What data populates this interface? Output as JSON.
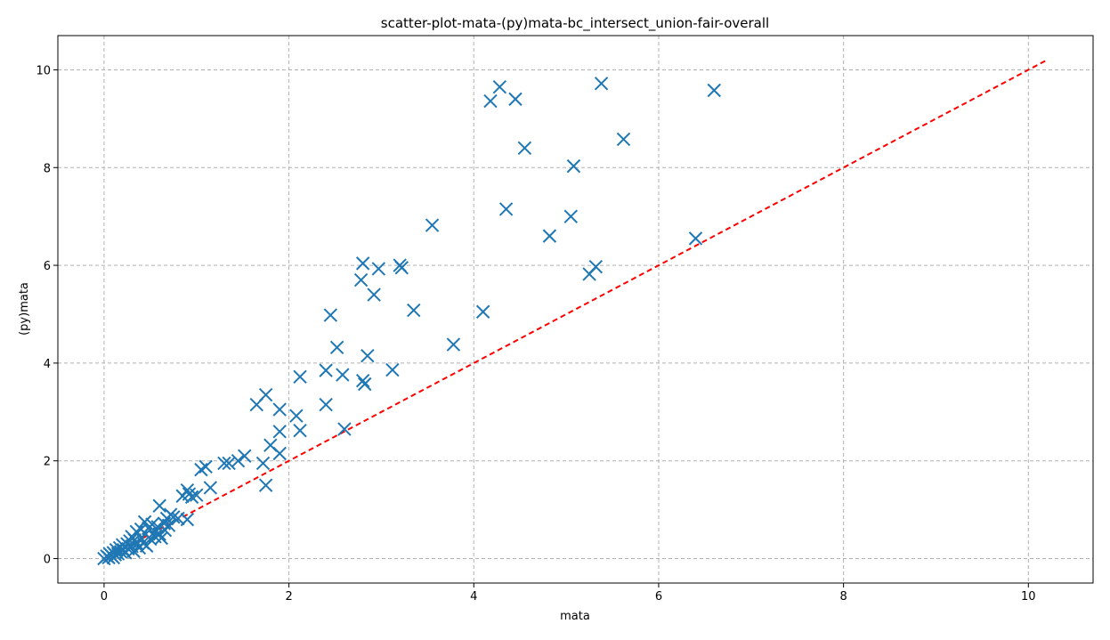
{
  "chart_data": {
    "type": "scatter",
    "title": "scatter-plot-mata-(py)mata-bc_intersect_union-fair-overall",
    "xlabel": "mata",
    "ylabel": "(py)mata",
    "xlim": [
      -0.5,
      10.7
    ],
    "ylim": [
      -0.5,
      10.7
    ],
    "xticks": [
      0,
      2,
      4,
      6,
      8,
      10
    ],
    "yticks": [
      0,
      2,
      4,
      6,
      8,
      10
    ],
    "grid": true,
    "marker": "x",
    "colors": {
      "points": "#1f77b4",
      "reference_line": "#ff0000"
    },
    "reference_line": {
      "x": [
        0,
        10.2
      ],
      "y": [
        0,
        10.2
      ]
    },
    "series": [
      {
        "points": [
          [
            0.0,
            0.0
          ],
          [
            0.03,
            0.05
          ],
          [
            0.05,
            0.02
          ],
          [
            0.06,
            0.1
          ],
          [
            0.08,
            0.06
          ],
          [
            0.1,
            0.12
          ],
          [
            0.1,
            0.02
          ],
          [
            0.12,
            0.08
          ],
          [
            0.13,
            0.18
          ],
          [
            0.15,
            0.1
          ],
          [
            0.17,
            0.22
          ],
          [
            0.18,
            0.14
          ],
          [
            0.2,
            0.28
          ],
          [
            0.21,
            0.18
          ],
          [
            0.23,
            0.12
          ],
          [
            0.25,
            0.3
          ],
          [
            0.26,
            0.2
          ],
          [
            0.28,
            0.36
          ],
          [
            0.3,
            0.25
          ],
          [
            0.3,
            0.45
          ],
          [
            0.32,
            0.15
          ],
          [
            0.33,
            0.38
          ],
          [
            0.35,
            0.55
          ],
          [
            0.36,
            0.3
          ],
          [
            0.38,
            0.22
          ],
          [
            0.4,
            0.42
          ],
          [
            0.4,
            0.6
          ],
          [
            0.42,
            0.32
          ],
          [
            0.44,
            0.75
          ],
          [
            0.45,
            0.5
          ],
          [
            0.46,
            0.26
          ],
          [
            0.48,
            0.62
          ],
          [
            0.5,
            0.4
          ],
          [
            0.52,
            0.7
          ],
          [
            0.55,
            0.55
          ],
          [
            0.55,
            0.45
          ],
          [
            0.58,
            0.65
          ],
          [
            0.6,
            1.08
          ],
          [
            0.6,
            0.5
          ],
          [
            0.62,
            0.42
          ],
          [
            0.65,
            0.72
          ],
          [
            0.66,
            0.58
          ],
          [
            0.68,
            0.82
          ],
          [
            0.7,
            0.68
          ],
          [
            0.72,
            0.9
          ],
          [
            0.75,
            0.85
          ],
          [
            0.8,
            0.82
          ],
          [
            0.85,
            1.28
          ],
          [
            0.9,
            1.4
          ],
          [
            0.9,
            0.8
          ],
          [
            0.92,
            1.32
          ],
          [
            0.95,
            1.26
          ],
          [
            1.0,
            1.3
          ],
          [
            1.05,
            1.82
          ],
          [
            1.1,
            1.88
          ],
          [
            1.15,
            1.45
          ],
          [
            1.3,
            1.95
          ],
          [
            1.35,
            1.95
          ],
          [
            1.45,
            2.0
          ],
          [
            1.52,
            2.1
          ],
          [
            1.65,
            3.15
          ],
          [
            1.72,
            1.95
          ],
          [
            1.75,
            3.35
          ],
          [
            1.75,
            1.5
          ],
          [
            1.8,
            2.32
          ],
          [
            1.9,
            2.6
          ],
          [
            1.9,
            3.05
          ],
          [
            1.9,
            2.15
          ],
          [
            2.08,
            2.92
          ],
          [
            2.12,
            3.72
          ],
          [
            2.12,
            2.62
          ],
          [
            2.4,
            3.85
          ],
          [
            2.4,
            3.15
          ],
          [
            2.45,
            4.98
          ],
          [
            2.52,
            4.32
          ],
          [
            2.58,
            3.76
          ],
          [
            2.6,
            2.65
          ],
          [
            2.78,
            5.7
          ],
          [
            2.8,
            6.04
          ],
          [
            2.8,
            3.64
          ],
          [
            2.82,
            3.57
          ],
          [
            2.85,
            4.15
          ],
          [
            2.92,
            5.4
          ],
          [
            2.97,
            5.93
          ],
          [
            3.12,
            3.86
          ],
          [
            3.2,
            6.0
          ],
          [
            3.22,
            5.95
          ],
          [
            3.35,
            5.08
          ],
          [
            3.55,
            6.82
          ],
          [
            3.78,
            4.38
          ],
          [
            4.1,
            5.05
          ],
          [
            4.18,
            9.36
          ],
          [
            4.28,
            9.65
          ],
          [
            4.35,
            7.15
          ],
          [
            4.45,
            9.4
          ],
          [
            4.55,
            8.4
          ],
          [
            4.82,
            6.6
          ],
          [
            5.05,
            7.0
          ],
          [
            5.08,
            8.03
          ],
          [
            5.25,
            5.82
          ],
          [
            5.32,
            5.97
          ],
          [
            5.38,
            9.72
          ],
          [
            5.62,
            8.58
          ],
          [
            6.4,
            6.55
          ],
          [
            6.6,
            9.58
          ]
        ]
      }
    ]
  }
}
